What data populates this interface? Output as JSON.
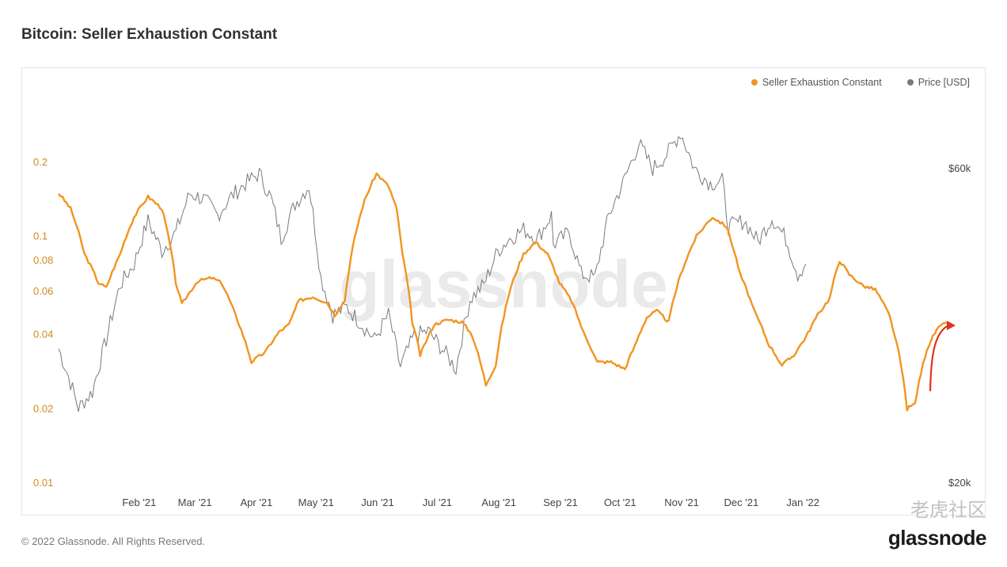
{
  "title": "Bitcoin: Seller Exhaustion Constant",
  "legend": [
    {
      "label": "Seller Exhaustion Constant",
      "color": "#f2941f"
    },
    {
      "label": "Price [USD]",
      "color": "#7a7a7a"
    }
  ],
  "watermark": "glassnode",
  "footer": "© 2022 Glassnode. All Rights Reserved.",
  "brand": "glassnode",
  "source_watermark": "老虎社区",
  "annotation": {
    "type": "arrow",
    "color": "#e0341b"
  },
  "chart_data": {
    "type": "line",
    "title": "Bitcoin: Seller Exhaustion Constant",
    "x_ticks": [
      "Feb '21",
      "Mar '21",
      "Apr '21",
      "May '21",
      "Jun '21",
      "Jul '21",
      "Aug '21",
      "Sep '21",
      "Oct '21",
      "Nov '21",
      "Dec '21",
      "Jan '22"
    ],
    "y_left": {
      "scale": "log",
      "range": [
        0.01,
        0.2
      ],
      "tick_labels": [
        "0.2",
        "0.1",
        "0.08",
        "0.06",
        "0.04",
        "0.02",
        "0.01"
      ],
      "tick_values": [
        0.2,
        0.1,
        0.08,
        0.06,
        0.04,
        0.02,
        0.01
      ]
    },
    "y_right": {
      "scale": "log",
      "range": [
        20000,
        60000
      ],
      "tick_labels": [
        "$60k",
        "$20k"
      ],
      "tick_values": [
        60000,
        20000
      ]
    },
    "series": [
      {
        "name": "Seller Exhaustion Constant",
        "axis": "left",
        "color": "#f2941f",
        "points": [
          [
            "2021-01-01",
            0.15
          ],
          [
            "2021-01-07",
            0.13
          ],
          [
            "2021-01-14",
            0.085
          ],
          [
            "2021-01-21",
            0.065
          ],
          [
            "2021-01-25",
            0.062
          ],
          [
            "2021-02-01",
            0.085
          ],
          [
            "2021-02-08",
            0.12
          ],
          [
            "2021-02-15",
            0.145
          ],
          [
            "2021-02-22",
            0.13
          ],
          [
            "2021-03-01",
            0.065
          ],
          [
            "2021-03-04",
            0.053
          ],
          [
            "2021-03-12",
            0.066
          ],
          [
            "2021-03-19",
            0.068
          ],
          [
            "2021-03-24",
            0.065
          ],
          [
            "2021-03-31",
            0.048
          ],
          [
            "2021-04-08",
            0.031
          ],
          [
            "2021-04-15",
            0.034
          ],
          [
            "2021-04-22",
            0.041
          ],
          [
            "2021-04-27",
            0.044
          ],
          [
            "2021-05-02",
            0.055
          ],
          [
            "2021-05-09",
            0.057
          ],
          [
            "2021-05-16",
            0.054
          ],
          [
            "2021-05-20",
            0.048
          ],
          [
            "2021-05-25",
            0.055
          ],
          [
            "2021-05-29",
            0.09
          ],
          [
            "2021-06-04",
            0.14
          ],
          [
            "2021-06-10",
            0.18
          ],
          [
            "2021-06-16",
            0.16
          ],
          [
            "2021-06-20",
            0.13
          ],
          [
            "2021-06-23",
            0.085
          ],
          [
            "2021-06-28",
            0.045
          ],
          [
            "2021-07-02",
            0.033
          ],
          [
            "2021-07-09",
            0.044
          ],
          [
            "2021-07-16",
            0.046
          ],
          [
            "2021-07-23",
            0.045
          ],
          [
            "2021-07-28",
            0.04
          ],
          [
            "2021-08-04",
            0.025
          ],
          [
            "2021-08-09",
            0.03
          ],
          [
            "2021-08-16",
            0.06
          ],
          [
            "2021-08-23",
            0.085
          ],
          [
            "2021-08-29",
            0.095
          ],
          [
            "2021-09-04",
            0.085
          ],
          [
            "2021-09-10",
            0.065
          ],
          [
            "2021-09-16",
            0.055
          ],
          [
            "2021-09-22",
            0.041
          ],
          [
            "2021-09-29",
            0.031
          ],
          [
            "2021-10-06",
            0.031
          ],
          [
            "2021-10-13",
            0.029
          ],
          [
            "2021-10-18",
            0.036
          ],
          [
            "2021-10-24",
            0.047
          ],
          [
            "2021-10-29",
            0.05
          ],
          [
            "2021-11-04",
            0.045
          ],
          [
            "2021-11-10",
            0.07
          ],
          [
            "2021-11-18",
            0.1
          ],
          [
            "2021-11-26",
            0.12
          ],
          [
            "2021-12-03",
            0.11
          ],
          [
            "2021-12-10",
            0.07
          ],
          [
            "2021-12-17",
            0.05
          ],
          [
            "2021-12-24",
            0.037
          ],
          [
            "2021-12-31",
            0.03
          ],
          [
            "2022-01-06",
            0.033
          ],
          [
            "2022-01-12",
            0.039
          ],
          [
            "2022-01-18",
            0.048
          ],
          [
            "2022-01-24",
            0.056
          ],
          [
            "2022-01-29",
            0.08
          ],
          [
            "2022-02-03",
            0.07
          ],
          [
            "2022-02-10",
            0.063
          ],
          [
            "2022-02-16",
            0.061
          ],
          [
            "2022-02-23",
            0.048
          ],
          [
            "2022-02-28",
            0.033
          ],
          [
            "2022-03-04",
            0.02
          ],
          [
            "2022-03-08",
            0.021
          ],
          [
            "2022-03-14",
            0.035
          ],
          [
            "2022-03-19",
            0.042
          ],
          [
            "2022-03-24",
            0.045
          ]
        ]
      },
      {
        "name": "Price [USD]",
        "axis": "right",
        "color": "#7a7a7a",
        "points": [
          [
            "2021-01-01",
            32000
          ],
          [
            "2021-01-06",
            29000
          ],
          [
            "2021-01-11",
            26000
          ],
          [
            "2021-01-18",
            27500
          ],
          [
            "2021-01-25",
            33000
          ],
          [
            "2021-02-01",
            40000
          ],
          [
            "2021-02-08",
            43000
          ],
          [
            "2021-02-15",
            50000
          ],
          [
            "2021-02-22",
            45000
          ],
          [
            "2021-03-01",
            48000
          ],
          [
            "2021-03-08",
            55000
          ],
          [
            "2021-03-15",
            54000
          ],
          [
            "2021-03-22",
            51000
          ],
          [
            "2021-03-29",
            54500
          ],
          [
            "2021-04-05",
            57000
          ],
          [
            "2021-04-12",
            59000
          ],
          [
            "2021-04-18",
            54000
          ],
          [
            "2021-04-23",
            47000
          ],
          [
            "2021-04-30",
            53000
          ],
          [
            "2021-05-07",
            56500
          ],
          [
            "2021-05-13",
            41000
          ],
          [
            "2021-05-19",
            36000
          ],
          [
            "2021-05-26",
            37000
          ],
          [
            "2021-06-02",
            35000
          ],
          [
            "2021-06-09",
            33000
          ],
          [
            "2021-06-16",
            36000
          ],
          [
            "2021-06-22",
            30000
          ],
          [
            "2021-06-29",
            33500
          ],
          [
            "2021-07-06",
            34000
          ],
          [
            "2021-07-13",
            32000
          ],
          [
            "2021-07-20",
            29800
          ],
          [
            "2021-07-27",
            38000
          ],
          [
            "2021-08-03",
            40000
          ],
          [
            "2021-08-10",
            45000
          ],
          [
            "2021-08-16",
            47000
          ],
          [
            "2021-08-23",
            48500
          ],
          [
            "2021-08-30",
            47000
          ],
          [
            "2021-09-06",
            51000
          ],
          [
            "2021-09-07",
            46000
          ],
          [
            "2021-09-15",
            48000
          ],
          [
            "2021-09-21",
            41500
          ],
          [
            "2021-09-28",
            41000
          ],
          [
            "2021-10-05",
            51000
          ],
          [
            "2021-10-12",
            57000
          ],
          [
            "2021-10-20",
            65500
          ],
          [
            "2021-10-27",
            60000
          ],
          [
            "2021-11-03",
            63000
          ],
          [
            "2021-11-10",
            68000
          ],
          [
            "2021-11-17",
            60000
          ],
          [
            "2021-11-25",
            57000
          ],
          [
            "2021-12-01",
            57500
          ],
          [
            "2021-12-04",
            49000
          ],
          [
            "2021-12-12",
            50000
          ],
          [
            "2021-12-19",
            46500
          ],
          [
            "2021-12-26",
            50500
          ],
          [
            "2022-01-02",
            47000
          ],
          [
            "2022-01-08",
            41500
          ],
          [
            "2022-01-12",
            43000
          ]
        ]
      }
    ],
    "grid": false,
    "legend_position": "top-right"
  }
}
